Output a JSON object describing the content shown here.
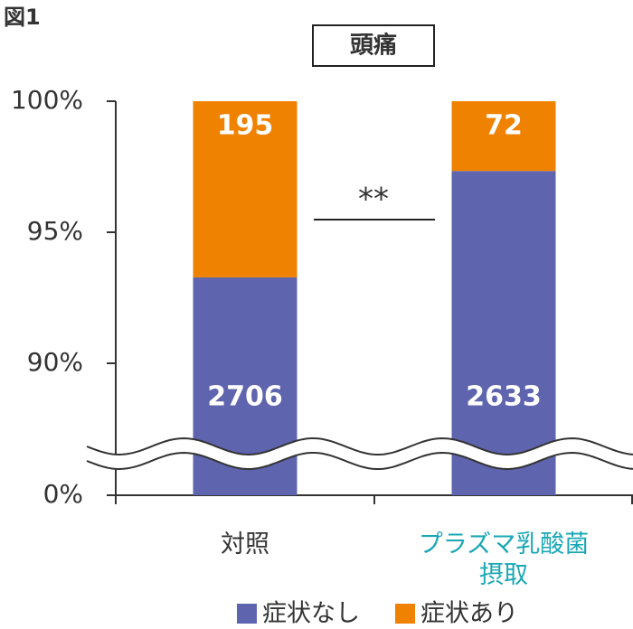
{
  "figure_label": "図1",
  "chart_data": {
    "type": "stacked_bar_100",
    "title": "頭痛",
    "categories": [
      "対照",
      "プラズマ乳酸菌\n摂取"
    ],
    "category_colors": [
      "#333333",
      "#1aa7b5"
    ],
    "series": [
      {
        "name": "症状なし",
        "color": "#5e64ad",
        "values": [
          2706,
          2633
        ]
      },
      {
        "name": "症状あり",
        "color": "#ef8200",
        "values": [
          195,
          72
        ]
      }
    ],
    "ylim": [
      0,
      100
    ],
    "yticks": [
      {
        "value": 0,
        "label": "0%"
      },
      {
        "value": 90,
        "label": "90%"
      },
      {
        "value": 95,
        "label": "95%"
      },
      {
        "value": 100,
        "label": "100%"
      }
    ],
    "axis_break": true,
    "annotation": "**",
    "legend": "bottom"
  }
}
